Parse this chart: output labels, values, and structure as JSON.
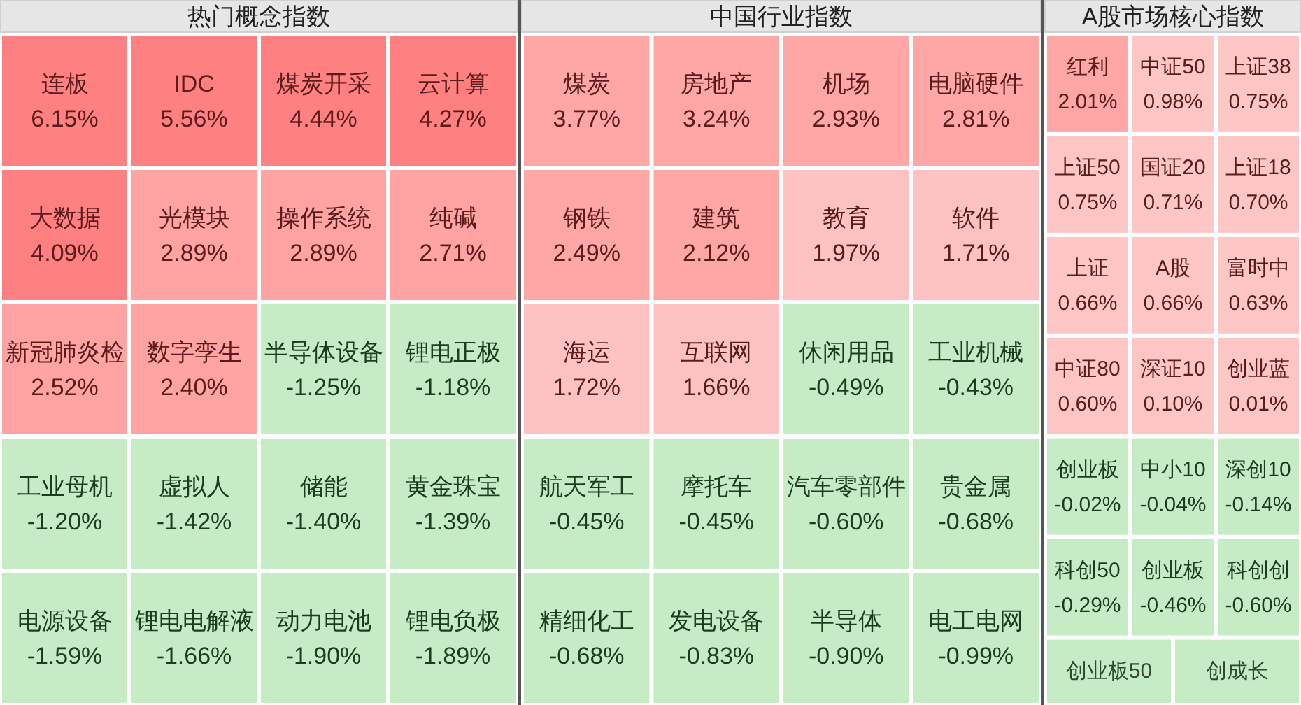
{
  "chart_data": [
    {
      "type": "other",
      "title": "热门概念指数",
      "categories": [
        "连板",
        "IDC",
        "煤炭开采",
        "云计算",
        "大数据",
        "光模块",
        "操作系统",
        "纯碱",
        "新冠肺炎检",
        "数字孪生",
        "半导体设备",
        "锂电正极",
        "工业母机",
        "虚拟人",
        "储能",
        "黄金珠宝",
        "电源设备",
        "锂电电解液",
        "动力电池",
        "锂电负极"
      ],
      "values": [
        6.15,
        5.56,
        4.44,
        4.27,
        4.09,
        2.89,
        2.89,
        2.71,
        2.52,
        2.4,
        -1.25,
        -1.18,
        -1.2,
        -1.42,
        -1.4,
        -1.39,
        -1.59,
        -1.66,
        -1.9,
        -1.89
      ],
      "value_labels": [
        "6.15%",
        "5.56%",
        "4.44%",
        "4.27%",
        "4.09%",
        "2.89%",
        "2.89%",
        "2.71%",
        "2.52%",
        "2.40%",
        "-1.25%",
        "-1.18%",
        "-1.20%",
        "-1.42%",
        "-1.40%",
        "-1.39%",
        "-1.59%",
        "-1.66%",
        "-1.90%",
        "-1.89%"
      ],
      "colors": [
        "#ff8080",
        "#ff8080",
        "#ff8080",
        "#ff8080",
        "#ff8080",
        "#ffa3a3",
        "#ffa3a3",
        "#ffa3a3",
        "#ffa3a3",
        "#ffa3a3",
        "#c6ecc6",
        "#c6ecc6",
        "#c6ecc6",
        "#c6ecc6",
        "#c6ecc6",
        "#c6ecc6",
        "#c6ecc6",
        "#c6ecc6",
        "#c6ecc6",
        "#c6ecc6"
      ]
    },
    {
      "type": "other",
      "title": "中国行业指数",
      "categories": [
        "煤炭",
        "房地产",
        "机场",
        "电脑硬件",
        "钢铁",
        "建筑",
        "教育",
        "软件",
        "海运",
        "互联网",
        "休闲用品",
        "工业机械",
        "航天军工",
        "摩托车",
        "汽车零部件",
        "贵金属",
        "精细化工",
        "发电设备",
        "半导体",
        "电工电网"
      ],
      "values": [
        3.77,
        3.24,
        2.93,
        2.81,
        2.49,
        2.12,
        1.97,
        1.71,
        1.72,
        1.66,
        -0.49,
        -0.43,
        -0.45,
        -0.45,
        -0.6,
        -0.68,
        -0.68,
        -0.83,
        -0.9,
        -0.99
      ],
      "value_labels": [
        "3.77%",
        "3.24%",
        "2.93%",
        "2.81%",
        "2.49%",
        "2.12%",
        "1.97%",
        "1.71%",
        "1.72%",
        "1.66%",
        "-0.49%",
        "-0.43%",
        "-0.45%",
        "-0.45%",
        "-0.60%",
        "-0.68%",
        "-0.68%",
        "-0.83%",
        "-0.90%",
        "-0.99%"
      ],
      "colors": [
        "#ffa6a6",
        "#ffa6a6",
        "#ffa6a6",
        "#ffa6a6",
        "#ffa6a6",
        "#ffa6a6",
        "#ffc2c2",
        "#ffc2c2",
        "#ffc2c2",
        "#ffc2c2",
        "#c6ecc6",
        "#c6ecc6",
        "#c6ecc6",
        "#c6ecc6",
        "#c6ecc6",
        "#c6ecc6",
        "#c6ecc6",
        "#c6ecc6",
        "#c6ecc6",
        "#c6ecc6"
      ]
    },
    {
      "type": "other",
      "title": "A股市场核心指数",
      "categories": [
        "红利",
        "中证50",
        "上证38",
        "上证50",
        "国证20",
        "上证18",
        "上证",
        "A股",
        "富时中",
        "中证80",
        "深证10",
        "创业蓝",
        "创业板",
        "中小10",
        "深创10",
        "科创50",
        "创业板",
        "科创创",
        "创业板50",
        "创成长"
      ],
      "values": [
        2.01,
        0.98,
        0.75,
        0.75,
        0.71,
        0.7,
        0.66,
        0.66,
        0.63,
        0.6,
        0.1,
        0.01,
        -0.02,
        -0.04,
        -0.14,
        -0.29,
        -0.46,
        -0.6,
        null,
        null
      ],
      "value_labels": [
        "2.01%",
        "0.98%",
        "0.75%",
        "0.75%",
        "0.71%",
        "0.70%",
        "0.66%",
        "0.66%",
        "0.63%",
        "0.60%",
        "0.10%",
        "0.01%",
        "-0.02%",
        "-0.04%",
        "-0.14%",
        "-0.29%",
        "-0.46%",
        "-0.60%",
        null,
        null
      ],
      "colors": [
        "#ffa6a6",
        "#ffc6c6",
        "#ffc6c6",
        "#ffc6c6",
        "#ffc6c6",
        "#ffc6c6",
        "#ffc6c6",
        "#ffc6c6",
        "#ffc6c6",
        "#ffc6c6",
        "#ffc6c6",
        "#ffc6c6",
        "#c6ecc6",
        "#c6ecc6",
        "#c6ecc6",
        "#c6ecc6",
        "#c6ecc6",
        "#c6ecc6",
        "#c6ecc6",
        "#c6ecc6"
      ]
    }
  ]
}
